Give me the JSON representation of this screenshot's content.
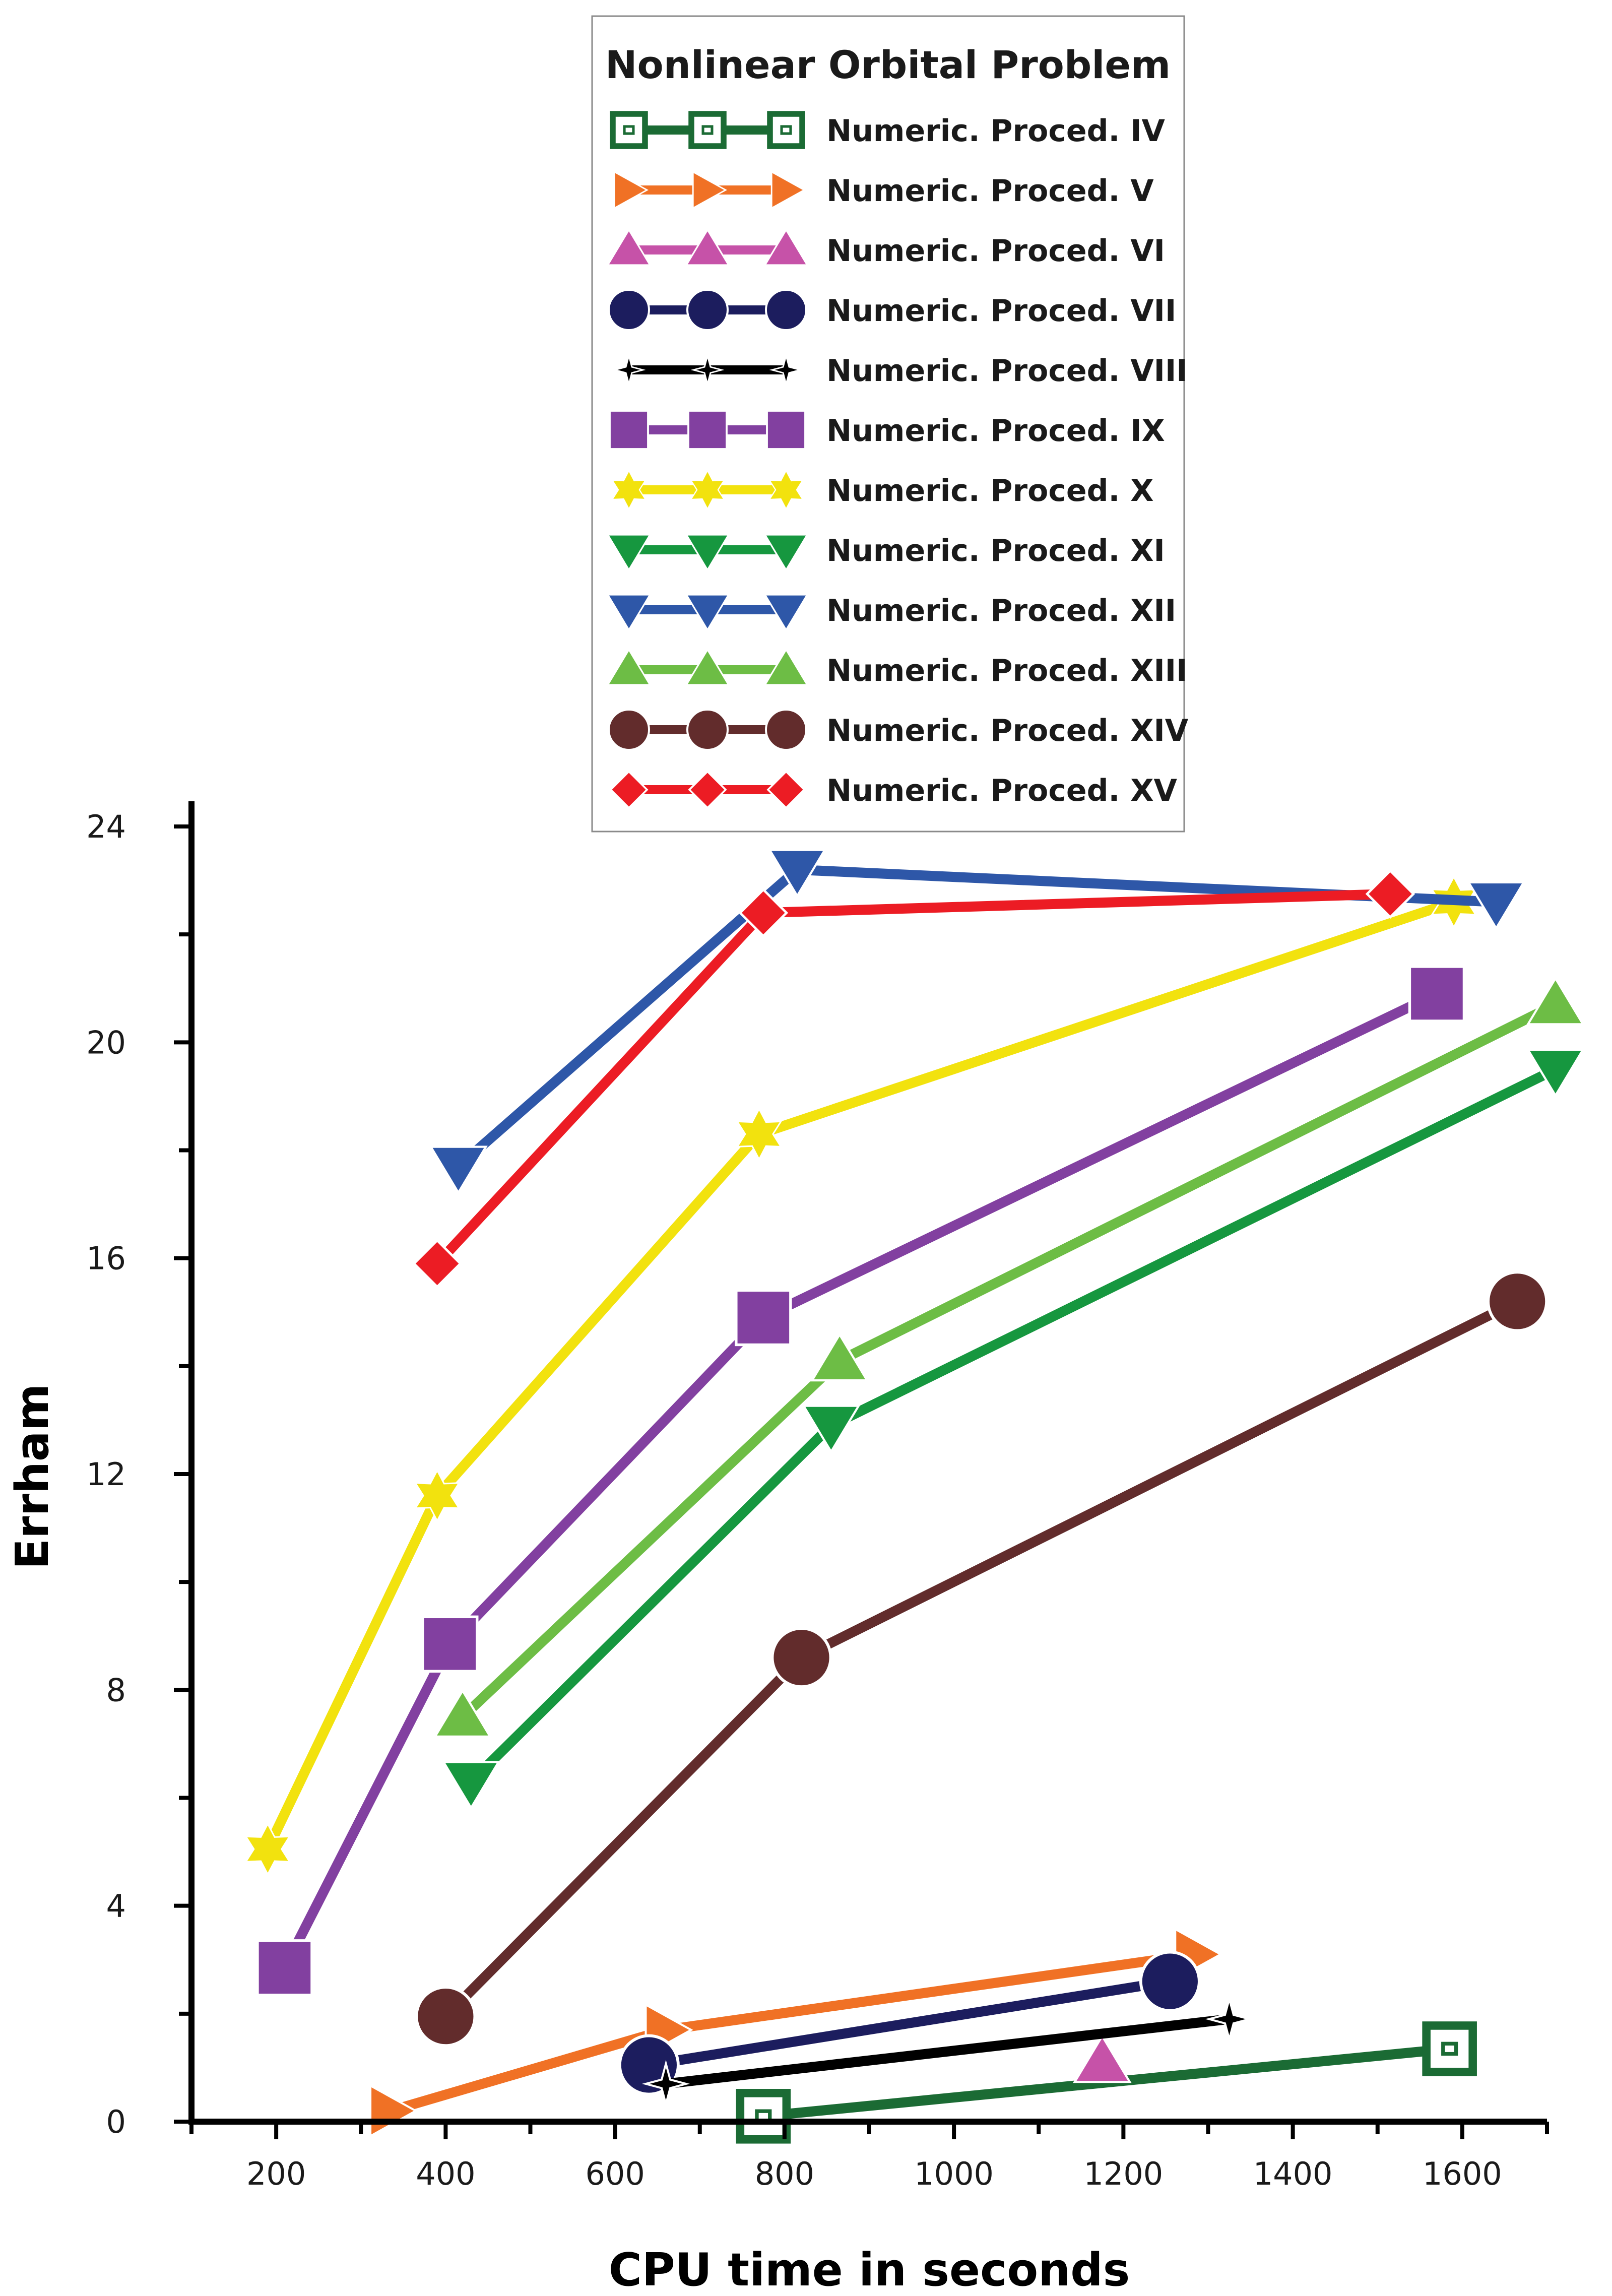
{
  "chart_data": {
    "type": "line",
    "title": "Nonlinear Orbital Problem",
    "xlabel": "CPU time in seconds",
    "ylabel": "Errham",
    "xlim": [
      100,
      1700
    ],
    "ylim": [
      0,
      24
    ],
    "xticks": [
      200,
      400,
      600,
      800,
      1000,
      1200,
      1400,
      1600
    ],
    "yticks": [
      0,
      4,
      8,
      12,
      16,
      20,
      24
    ],
    "legend_position": "top-center",
    "series": [
      {
        "name": "Numeric. Proced. IV",
        "color": "#1b6b34",
        "marker": "square-outline",
        "points": [
          [
            775,
            0.1
          ],
          [
            1585,
            1.35
          ]
        ]
      },
      {
        "name": "Numeric. Proced. V",
        "color": "#f07125",
        "marker": "triangle-right",
        "points": [
          [
            335,
            0.2
          ],
          [
            660,
            1.7
          ],
          [
            1285,
            3.1
          ]
        ]
      },
      {
        "name": "Numeric. Proced. VI",
        "color": "#c652a8",
        "marker": "triangle-up",
        "points": [
          [
            1175,
            1.1
          ]
        ]
      },
      {
        "name": "Numeric. Proced. VII",
        "color": "#1c1d5e",
        "marker": "circle",
        "points": [
          [
            640,
            1.05
          ],
          [
            1255,
            2.6
          ]
        ]
      },
      {
        "name": "Numeric. Proced. VIII",
        "color": "#000000",
        "marker": "star4",
        "points": [
          [
            660,
            0.7
          ],
          [
            1325,
            1.9
          ]
        ]
      },
      {
        "name": "Numeric. Proced. IX",
        "color": "#8240a0",
        "marker": "square",
        "points": [
          [
            210,
            2.85
          ],
          [
            405,
            8.85
          ],
          [
            775,
            14.9
          ],
          [
            1570,
            20.9
          ]
        ]
      },
      {
        "name": "Numeric. Proced. X",
        "color": "#f2e20e",
        "marker": "star6",
        "points": [
          [
            190,
            5.05
          ],
          [
            390,
            11.6
          ],
          [
            770,
            18.3
          ],
          [
            1590,
            22.6
          ]
        ]
      },
      {
        "name": "Numeric. Proced. XI",
        "color": "#16973f",
        "marker": "triangle-down",
        "points": [
          [
            430,
            6.3
          ],
          [
            855,
            12.9
          ],
          [
            1710,
            19.5
          ]
        ]
      },
      {
        "name": "Numeric. Proced. XII",
        "color": "#2e57a8",
        "marker": "triangle-down",
        "points": [
          [
            415,
            17.7
          ],
          [
            815,
            23.2
          ],
          [
            1640,
            22.6
          ]
        ]
      },
      {
        "name": "Numeric. Proced. XIII",
        "color": "#6dbd45",
        "marker": "triangle-up",
        "points": [
          [
            420,
            7.5
          ],
          [
            865,
            14.1
          ],
          [
            1710,
            20.7
          ]
        ]
      },
      {
        "name": "Numeric. Proced. XIV",
        "color": "#622c2c",
        "marker": "circle",
        "points": [
          [
            400,
            1.95
          ],
          [
            820,
            8.6
          ],
          [
            1665,
            15.2
          ]
        ]
      },
      {
        "name": "Numeric. Proced. XV",
        "color": "#ec1c24",
        "marker": "diamond",
        "points": [
          [
            390,
            15.9
          ],
          [
            775,
            22.4
          ],
          [
            1515,
            22.75
          ]
        ]
      }
    ]
  }
}
